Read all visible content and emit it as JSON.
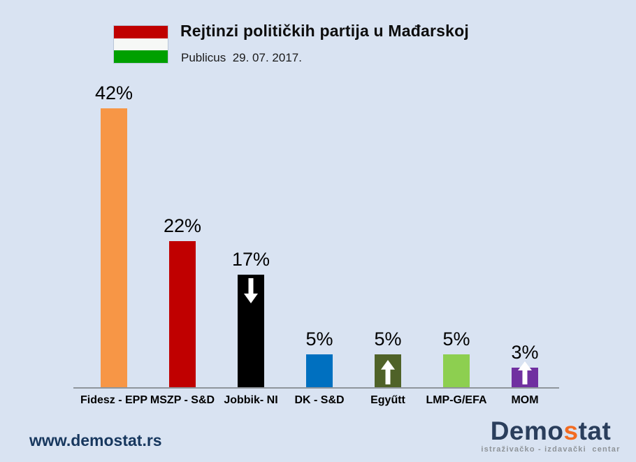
{
  "header": {
    "title": "Rejtinzi političkih partija u Mađarskoj",
    "subtitle": "Publicus  29. 07. 2017.",
    "flag": {
      "name": "hungary-flag",
      "stripes": [
        "#c00000",
        "#f6f8f6",
        "#00a000"
      ]
    }
  },
  "chart_data": {
    "type": "bar",
    "title": "Rejtinzi političkih partija u Mađarskoj",
    "subtitle": "Publicus 29. 07. 2017.",
    "categories": [
      "Fidesz - EPP",
      "MSZP - S&D",
      "Jobbik- NI",
      "DK - S&D",
      "Egyűtt",
      "LMP-G/EFA",
      "MOM"
    ],
    "values": [
      42,
      22,
      17,
      5,
      5,
      5,
      3
    ],
    "value_labels": [
      "42%",
      "22%",
      "17%",
      "5%",
      "5%",
      "5%",
      "3%"
    ],
    "colors": [
      "#f79646",
      "#c00000",
      "#000000",
      "#0070c0",
      "#4f6228",
      "#8dcf50",
      "#7030a0"
    ],
    "trend_arrows": [
      null,
      null,
      "down",
      null,
      "up",
      null,
      "up"
    ],
    "xlabel": "",
    "ylabel": "",
    "ylim": [
      0,
      45
    ],
    "grid": false,
    "legend": "none",
    "unit": "%"
  },
  "footer": {
    "website": "www.demostat.rs",
    "logo": {
      "part1": "Demo",
      "accent": "s",
      "part2": "tat",
      "tagline": "istraživačko - izdavački  centar"
    }
  },
  "style_colors": {
    "background": "#d9e3f2",
    "axis_line": "#8f959c",
    "website_navy": "#17375e",
    "logo_navy": "#2a3e5c",
    "logo_accent_orange": "#f26b21",
    "arrow_white": "#ffffff"
  }
}
